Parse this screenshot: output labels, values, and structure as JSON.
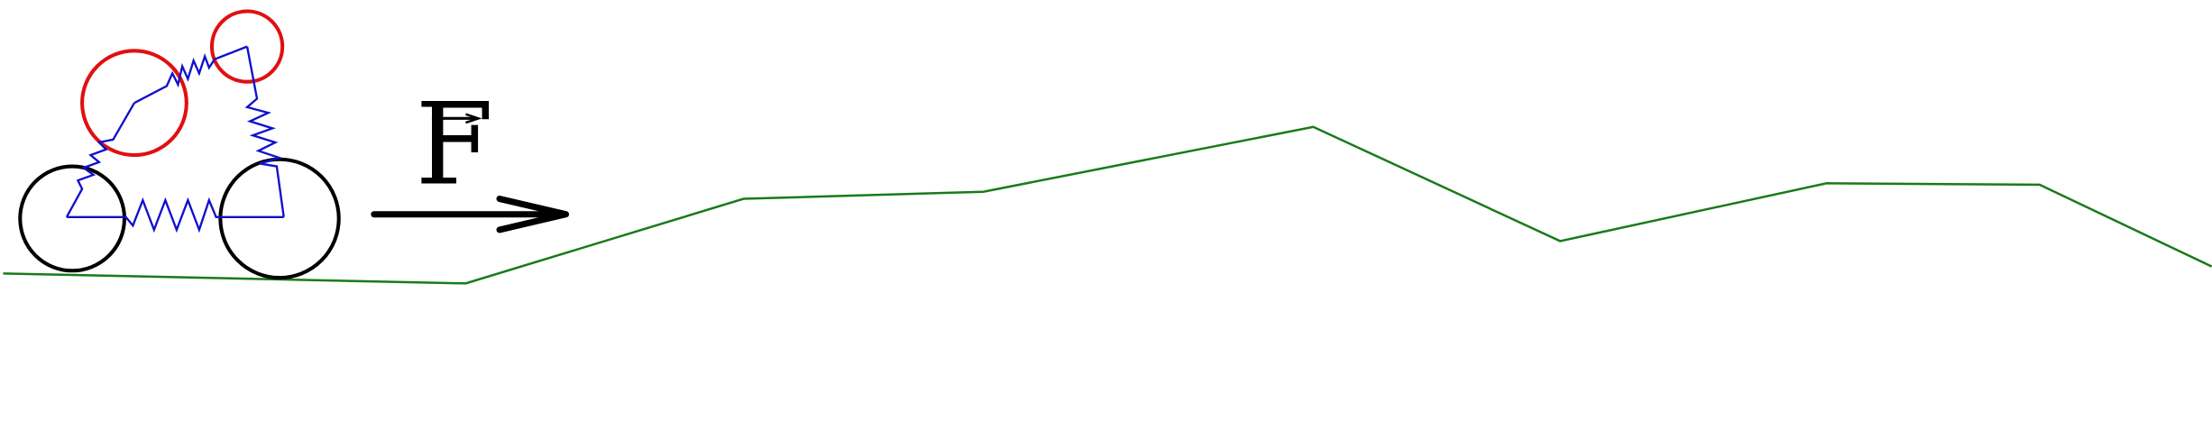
{
  "diagram": {
    "force_label": "F",
    "colors": {
      "ground": "#1a7a1a",
      "wheel": "#000000",
      "body_circle": "#e01010",
      "spring": "#1010cc",
      "arrow": "#000000"
    },
    "components": [
      "ground-line",
      "rear-wheel",
      "front-wheel",
      "upper-left-body-circle",
      "upper-right-body-circle",
      "springs",
      "force-arrow"
    ]
  }
}
